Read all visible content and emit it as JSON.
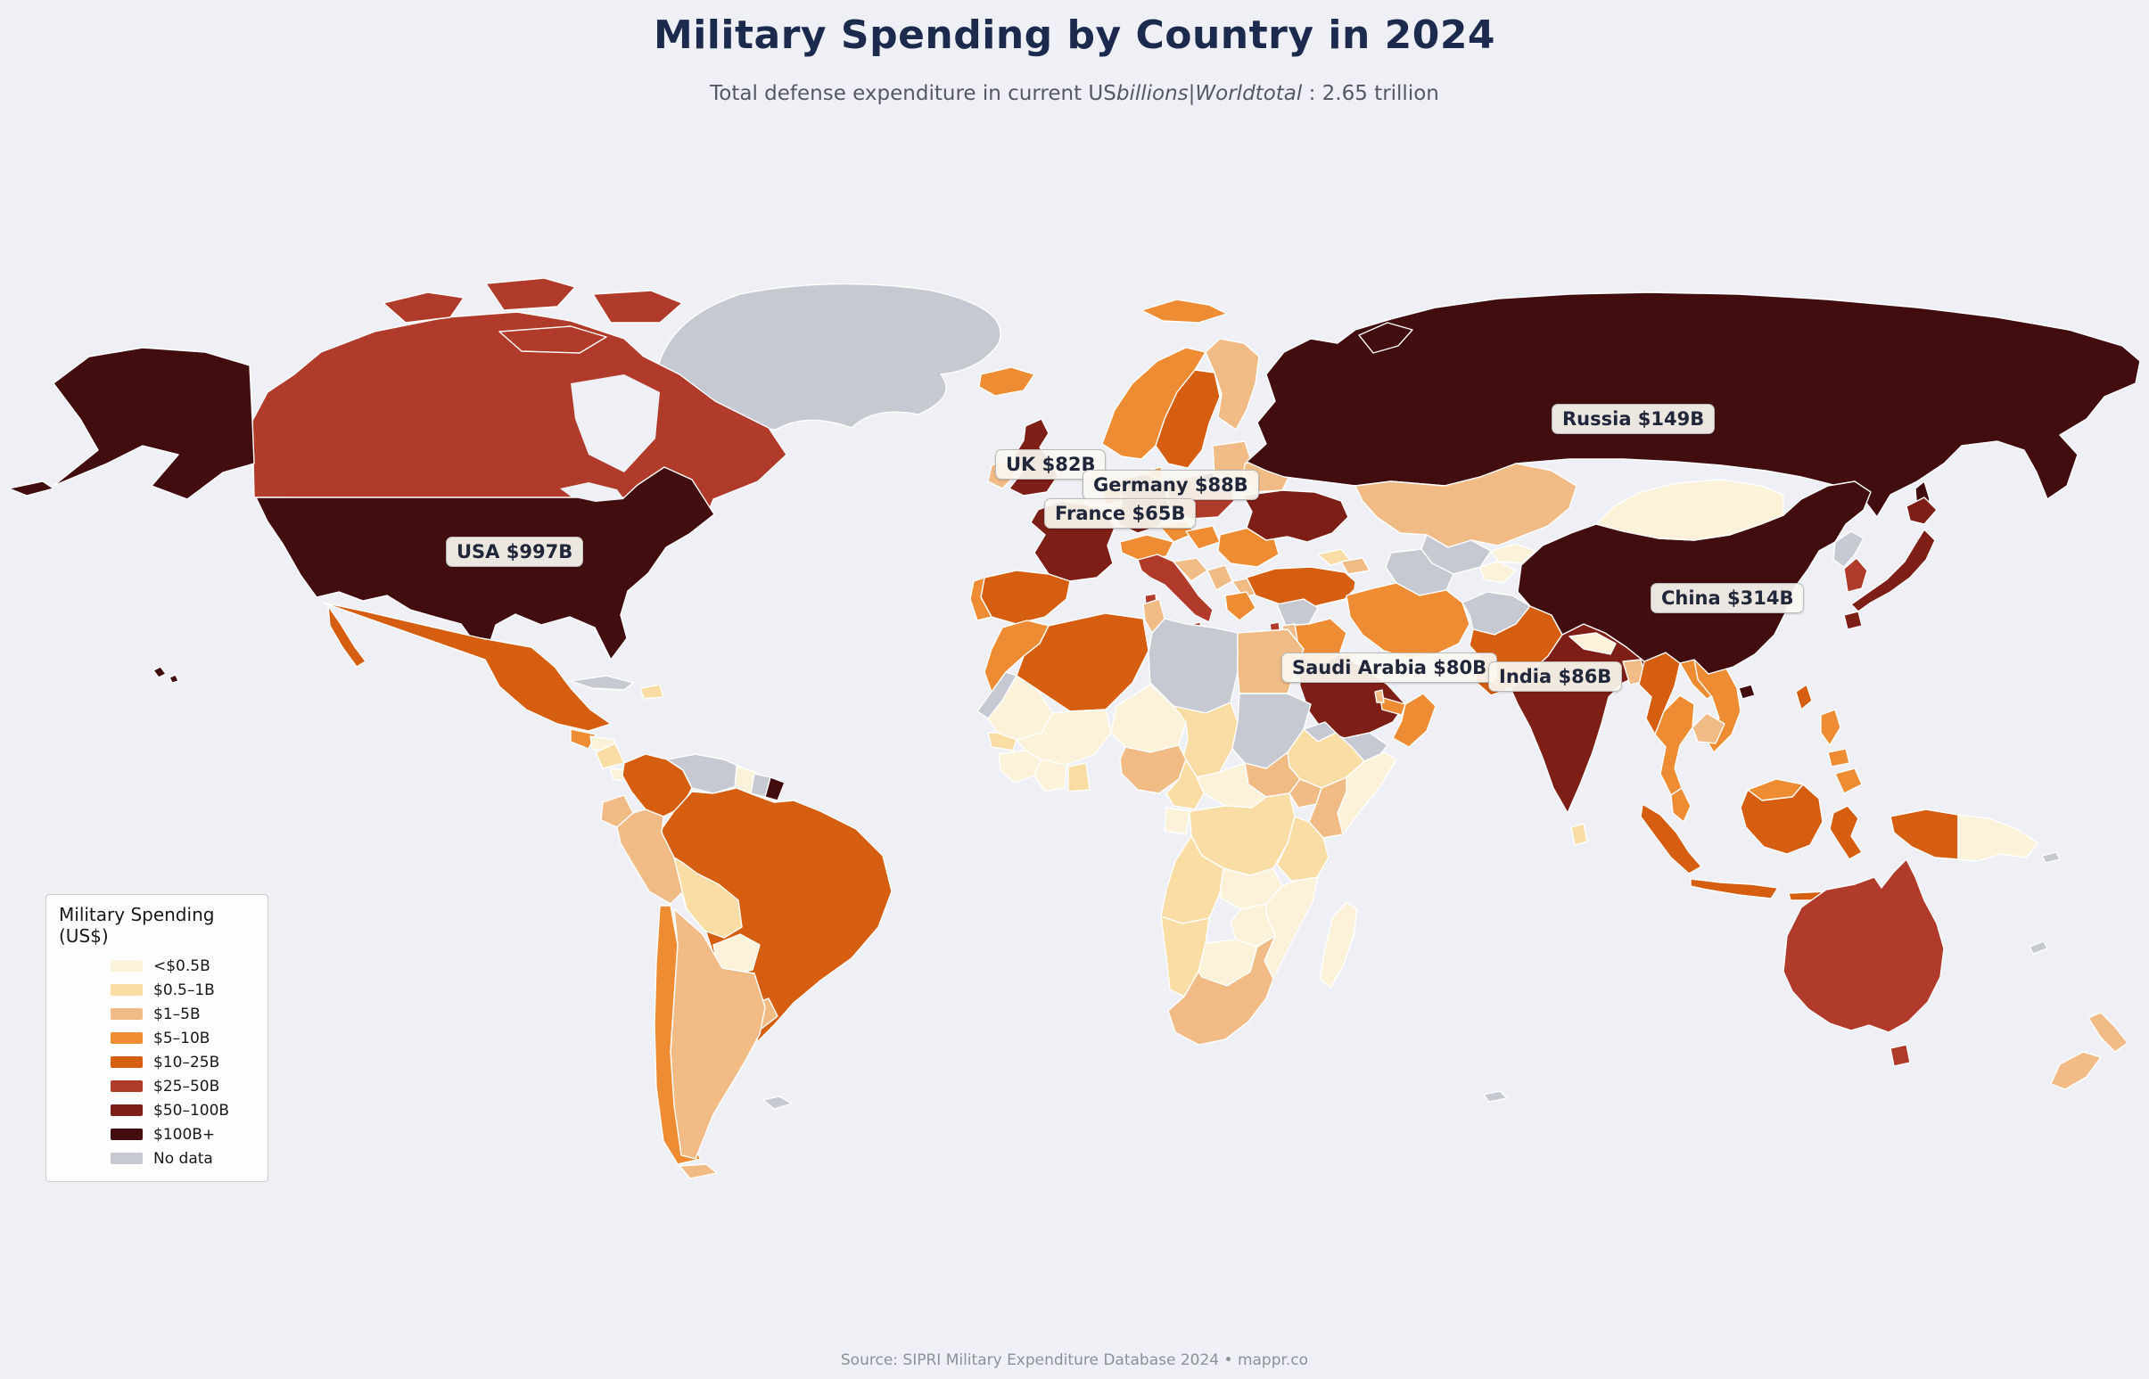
{
  "header": {
    "title": "Military Spending by Country in 2024",
    "subtitle_pre": "Total defense expenditure in current US",
    "subtitle_math": "billions|Worldtotal",
    "subtitle_post": " : 2.65 trillion"
  },
  "footer": {
    "text": "Source: SIPRI Military Expenditure Database 2024  •  mappr.co"
  },
  "colors": {
    "background": "#eef0f5",
    "title_text": "#1c2b4d",
    "subtitle_text": "#55595f",
    "footer_text": "#8b9099",
    "border_stroke": "#ffffff"
  },
  "legend": {
    "title": "Military Spending (US$)",
    "items": [
      {
        "key": "lt05",
        "label": "<$0.5B"
      },
      {
        "key": "b05_1",
        "label": "$0.5–1B"
      },
      {
        "key": "b1_5",
        "label": "$1–5B"
      },
      {
        "key": "b5_10",
        "label": "$5–10B"
      },
      {
        "key": "b10_25",
        "label": "$10–25B"
      },
      {
        "key": "b25_50",
        "label": "$25–50B"
      },
      {
        "key": "b50_100",
        "label": "$50–100B"
      },
      {
        "key": "b100p",
        "label": "$100B+"
      },
      {
        "key": "nodata",
        "label": "No data"
      }
    ],
    "colors": {
      "lt05": "#fbf2d9",
      "b05_1": "#f9dda4",
      "b1_5": "#f1bb86",
      "b5_10": "#ee8c33",
      "b10_25": "#d55e10",
      "b25_50": "#b13b2a",
      "b50_100": "#7d1f16",
      "b100p": "#420d0f",
      "nodata": "#c6c9d2"
    }
  },
  "map": {
    "labels": [
      {
        "id": "usa",
        "text": "USA $997B"
      },
      {
        "id": "russia",
        "text": "Russia $149B"
      },
      {
        "id": "uk",
        "text": "UK $82B"
      },
      {
        "id": "germany",
        "text": "Germany $88B"
      },
      {
        "id": "france",
        "text": "France $65B"
      },
      {
        "id": "china",
        "text": "China $314B"
      },
      {
        "id": "saudi",
        "text": "Saudi Arabia $80B"
      },
      {
        "id": "india",
        "text": "India $86B"
      }
    ],
    "countries": {
      "usa": "b100p",
      "canada": "b25_50",
      "greenland": "nodata",
      "mexico": "b10_25",
      "guatemala": "b5_10",
      "honduras": "lt05",
      "nicaragua": "b05_1",
      "costa_rica": "lt05",
      "panama": "nodata",
      "cuba": "nodata",
      "hispaniola": "b05_1",
      "colombia": "b10_25",
      "venezuela": "nodata",
      "guyana": "lt05",
      "suriname": "nodata",
      "french_guiana": "b100p",
      "brazil": "b10_25",
      "ecuador": "b1_5",
      "peru": "b1_5",
      "bolivia": "b05_1",
      "paraguay": "lt05",
      "chile": "b5_10",
      "argentina": "b1_5",
      "uruguay": "b1_5",
      "falkland": "nodata",
      "kerguelen": "nodata",
      "iceland": "b5_10",
      "svalbard": "b5_10",
      "norway": "b5_10",
      "sweden": "b10_25",
      "finland": "b1_5",
      "denmark": "b5_10",
      "baltics": "b1_5",
      "uk": "b50_100",
      "ireland": "b1_5",
      "france": "b50_100",
      "spain": "b10_25",
      "portugal": "b5_10",
      "germany": "b50_100",
      "benelux": "b10_25",
      "poland": "b25_50",
      "czechia": "b5_10",
      "austria_switzerland": "b5_10",
      "italy": "b25_50",
      "croatia": "b1_5",
      "serbia": "b1_5",
      "bulgaria": "b1_5",
      "romania": "b5_10",
      "hungary": "b5_10",
      "greece": "b5_10",
      "belarus": "b1_5",
      "ukraine": "b50_100",
      "turkey": "b10_25",
      "russia": "b100p",
      "morocco": "b5_10",
      "w_sahara": "nodata",
      "algeria": "b10_25",
      "tunisia": "b1_5",
      "libya": "nodata",
      "egypt": "b1_5",
      "mauritania": "lt05",
      "mali": "lt05",
      "niger": "lt05",
      "chad": "b05_1",
      "sudan": "nodata",
      "eritrea": "nodata",
      "ethiopia": "b05_1",
      "somalia": "lt05",
      "south_sudan": "b1_5",
      "car": "lt05",
      "nigeria": "b1_5",
      "cameroon": "b05_1",
      "senegal": "b05_1",
      "guinea": "lt05",
      "ivory_coast": "lt05",
      "ghana": "b05_1",
      "gabon_congo": "lt05",
      "drc": "b05_1",
      "uganda": "b1_5",
      "kenya": "b1_5",
      "tanzania": "b05_1",
      "angola": "b05_1",
      "zambia": "lt05",
      "mozambique": "lt05",
      "zimbabwe": "lt05",
      "namibia": "b05_1",
      "botswana": "lt05",
      "south_africa": "b1_5",
      "madagascar": "lt05",
      "syria": "nodata",
      "iraq": "b5_10",
      "israel": "b25_50",
      "jordan": "b1_5",
      "saudi": "b50_100",
      "yemen": "nodata",
      "oman": "b5_10",
      "uae": "b5_10",
      "kuwait": "b5_10",
      "qatar": "b1_5",
      "iran": "b5_10",
      "afghanistan": "nodata",
      "pakistan": "b10_25",
      "kazakhstan": "b1_5",
      "uzbekistan": "nodata",
      "turkmenistan": "nodata",
      "kyrgyzstan": "lt05",
      "tajikistan": "lt05",
      "georgia": "b05_1",
      "azerbaijan": "b1_5",
      "india": "b50_100",
      "sri_lanka": "b05_1",
      "nepal": "lt05",
      "bangladesh": "b1_5",
      "myanmar": "b10_25",
      "thailand": "b5_10",
      "laos": "b5_10",
      "vietnam": "b5_10",
      "cambodia": "b1_5",
      "malaysia": "b5_10",
      "indonesia": "b10_25",
      "png": "lt05",
      "philippines": "b5_10",
      "taiwan": "b10_25",
      "china": "b100p",
      "mongolia": "lt05",
      "north_korea": "nodata",
      "south_korea": "b25_50",
      "japan": "b50_100",
      "australia": "b25_50",
      "new_zealand": "b1_5",
      "new_caledonia": "nodata",
      "solomon": "nodata"
    }
  }
}
